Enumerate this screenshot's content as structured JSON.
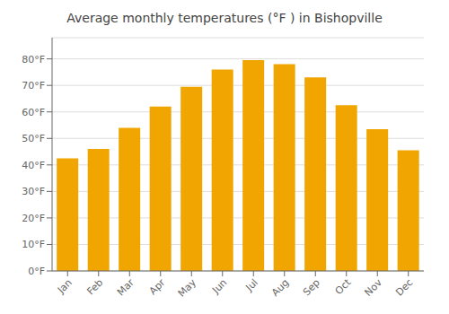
{
  "chart_data": {
    "type": "bar",
    "title": "Average monthly temperatures (°F ) in Bishopville",
    "categories": [
      "Jan",
      "Feb",
      "Mar",
      "Apr",
      "May",
      "Jun",
      "Jul",
      "Aug",
      "Sep",
      "Oct",
      "Nov",
      "Dec"
    ],
    "values": [
      42.5,
      46.0,
      54.0,
      62.0,
      69.5,
      76.0,
      79.5,
      78.0,
      73.0,
      62.5,
      53.5,
      45.5
    ],
    "color": "#F0A500",
    "ylim": [
      0,
      88
    ],
    "yticks": [
      {
        "value": 0,
        "label": "0°F"
      },
      {
        "value": 10,
        "label": "10°F"
      },
      {
        "value": 20,
        "label": "20°F"
      },
      {
        "value": 30,
        "label": "30°F"
      },
      {
        "value": 40,
        "label": "40°F"
      },
      {
        "value": 50,
        "label": "50°F"
      },
      {
        "value": 60,
        "label": "60°F"
      },
      {
        "value": 70,
        "label": "70°F"
      },
      {
        "value": 80,
        "label": "80°F"
      }
    ],
    "grid": true
  }
}
